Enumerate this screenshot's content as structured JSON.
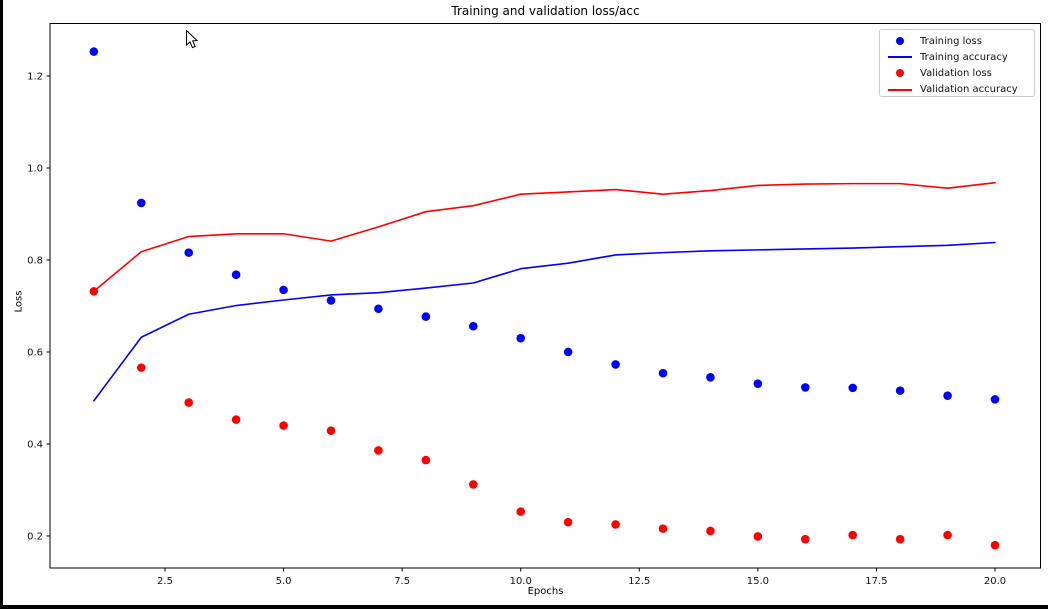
{
  "window": {
    "background": "#000000",
    "figure_background": "#ffffff"
  },
  "chart_data": {
    "type": "line+scatter",
    "title": "Training and validation loss/acc",
    "xlabel": "Epochs",
    "ylabel": "Loss",
    "x_epochs": [
      1,
      2,
      3,
      4,
      5,
      6,
      7,
      8,
      9,
      10,
      11,
      12,
      13,
      14,
      15,
      16,
      17,
      18,
      19,
      20
    ],
    "xlim": [
      0.0753,
      20.959
    ],
    "ylim": [
      0.1304,
      1.3141
    ],
    "xticks": {
      "values": [
        2.5,
        5.0,
        7.5,
        10.0,
        12.5,
        15.0,
        17.5,
        20.0
      ],
      "labels": [
        "2.5",
        "5.0",
        "7.5",
        "10.0",
        "12.5",
        "15.0",
        "17.5",
        "20.0"
      ]
    },
    "yticks": {
      "values": [
        0.2,
        0.4,
        0.6,
        0.8,
        1.0,
        1.2
      ],
      "labels": [
        "0.2",
        "0.4",
        "0.6",
        "0.8",
        "1.0",
        "1.2"
      ]
    },
    "grid": false,
    "legend_position": "upper right",
    "series": [
      {
        "name": "Training loss",
        "style": "scatter",
        "color": "#0000ff",
        "values": [
          1.253,
          0.924,
          0.816,
          0.768,
          0.735,
          0.712,
          0.694,
          0.677,
          0.656,
          0.63,
          0.6,
          0.573,
          0.554,
          0.545,
          0.531,
          0.523,
          0.522,
          0.516,
          0.505,
          0.497
        ]
      },
      {
        "name": "Training accuracy",
        "style": "line",
        "color": "#0000ff",
        "values": [
          0.494,
          0.632,
          0.682,
          0.701,
          0.713,
          0.724,
          0.729,
          0.739,
          0.75,
          0.781,
          0.793,
          0.811,
          0.816,
          0.82,
          0.822,
          0.824,
          0.826,
          0.829,
          0.832,
          0.838
        ]
      },
      {
        "name": "Validation loss",
        "style": "scatter",
        "color": "#ff0000",
        "values": [
          0.732,
          0.566,
          0.49,
          0.453,
          0.44,
          0.429,
          0.386,
          0.365,
          0.312,
          0.253,
          0.23,
          0.225,
          0.216,
          0.211,
          0.199,
          0.193,
          0.202,
          0.193,
          0.202,
          0.18
        ]
      },
      {
        "name": "Validation accuracy",
        "style": "line",
        "color": "#ff0000",
        "values": [
          0.732,
          0.818,
          0.851,
          0.857,
          0.857,
          0.841,
          0.872,
          0.905,
          0.918,
          0.943,
          0.948,
          0.953,
          0.943,
          0.951,
          0.962,
          0.965,
          0.966,
          0.966,
          0.956,
          0.968
        ]
      }
    ]
  },
  "cursor": {
    "icon": "arrow-pointer"
  }
}
